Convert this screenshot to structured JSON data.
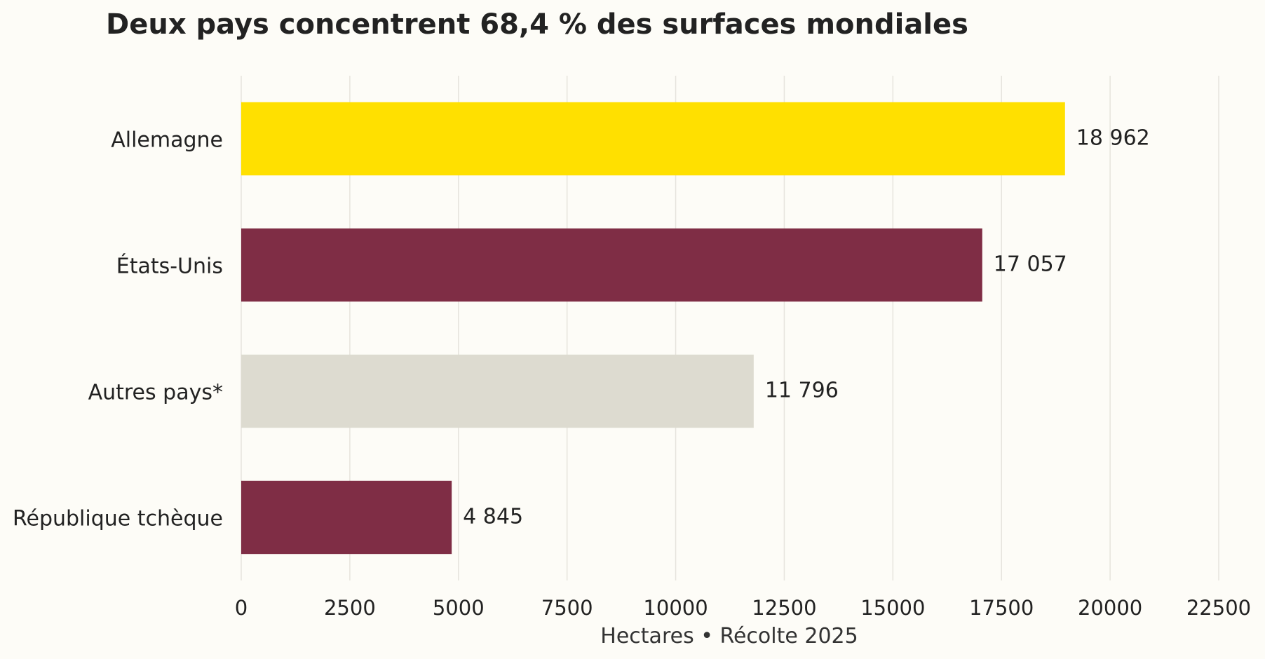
{
  "chart_data": {
    "type": "bar",
    "orientation": "horizontal",
    "title": "Deux pays concentrent 68,4 % des surfaces mondiales",
    "xlabel": "Hectares • Récolte 2025",
    "ylabel": "",
    "categories": [
      "Allemagne",
      "États-Unis",
      "Autres pays*",
      "République tchèque"
    ],
    "values": [
      18962,
      17057,
      11796,
      4845
    ],
    "value_labels": [
      "18 962",
      "17 057",
      "11 796",
      "4 845"
    ],
    "bar_colors": [
      "#FFE000",
      "#7F2D45",
      "#DDDBD0",
      "#7F2D45"
    ],
    "xlim": [
      0,
      22500
    ],
    "xticks": [
      0,
      2500,
      5000,
      7500,
      10000,
      12500,
      15000,
      17500,
      20000,
      22500
    ],
    "xtick_labels": [
      "0",
      "2500",
      "5000",
      "7500",
      "10000",
      "12500",
      "15000",
      "17500",
      "20000",
      "22500"
    ],
    "grid": "vertical",
    "legend": "none",
    "background_color": "#FDFCF7",
    "text_color": "#222222"
  }
}
